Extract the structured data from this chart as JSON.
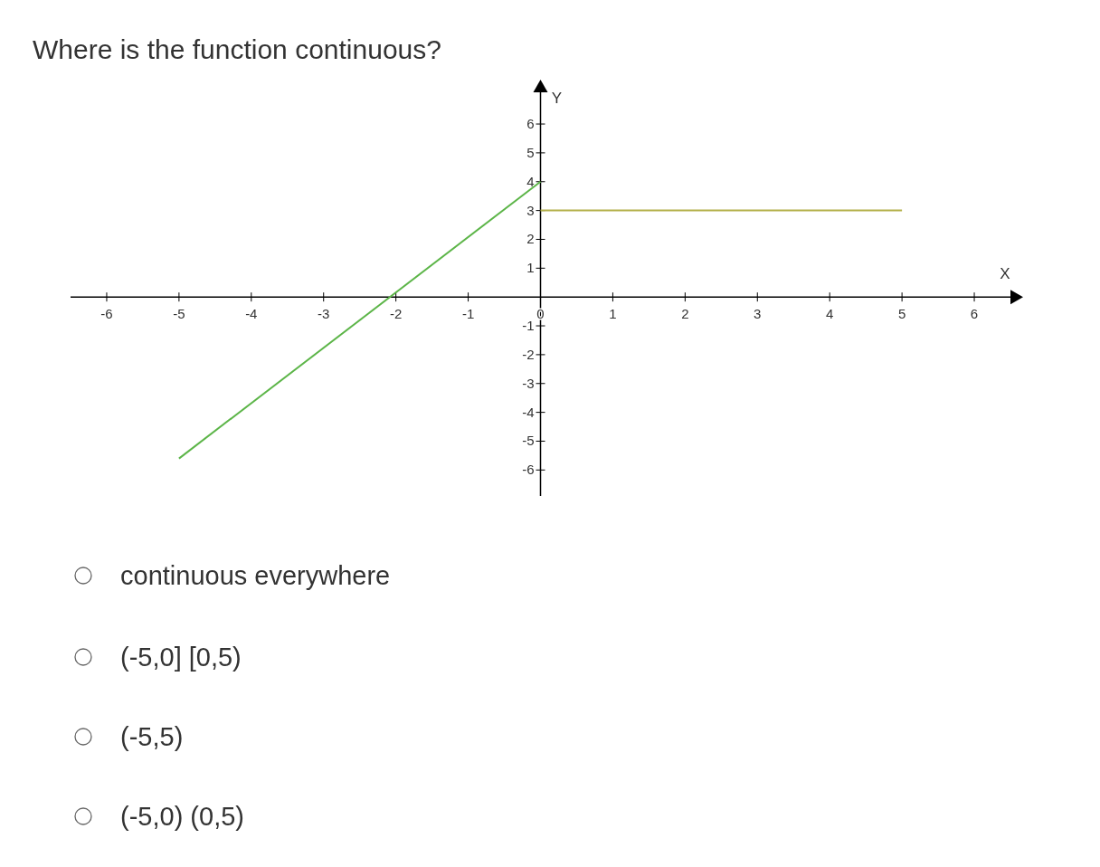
{
  "chart_data": {
    "type": "line",
    "title": "Where is the function continuous?",
    "xlabel": "X",
    "ylabel": "Y",
    "xlim": [
      -6.5,
      6.5
    ],
    "ylim": [
      -6.9,
      7.1
    ],
    "xticks": [
      -6,
      -5,
      -4,
      -3,
      -2,
      -1,
      0,
      1,
      2,
      3,
      4,
      5,
      6
    ],
    "yticks": [
      -6,
      -5,
      -4,
      -3,
      -2,
      -1,
      1,
      2,
      3,
      4,
      5,
      6
    ],
    "series": [
      {
        "color": "#5cb548",
        "x": [
          -5,
          0
        ],
        "values": [
          -5.6,
          4
        ]
      },
      {
        "color": "#b3b04a",
        "x": [
          0,
          5
        ],
        "values": [
          3,
          3
        ]
      }
    ],
    "grid": false,
    "marker": "none",
    "annotations": [
      "continuous everywhere",
      "(-5,0] [0,5)",
      "(-5,5)",
      "(-5,0) (0,5)"
    ]
  }
}
